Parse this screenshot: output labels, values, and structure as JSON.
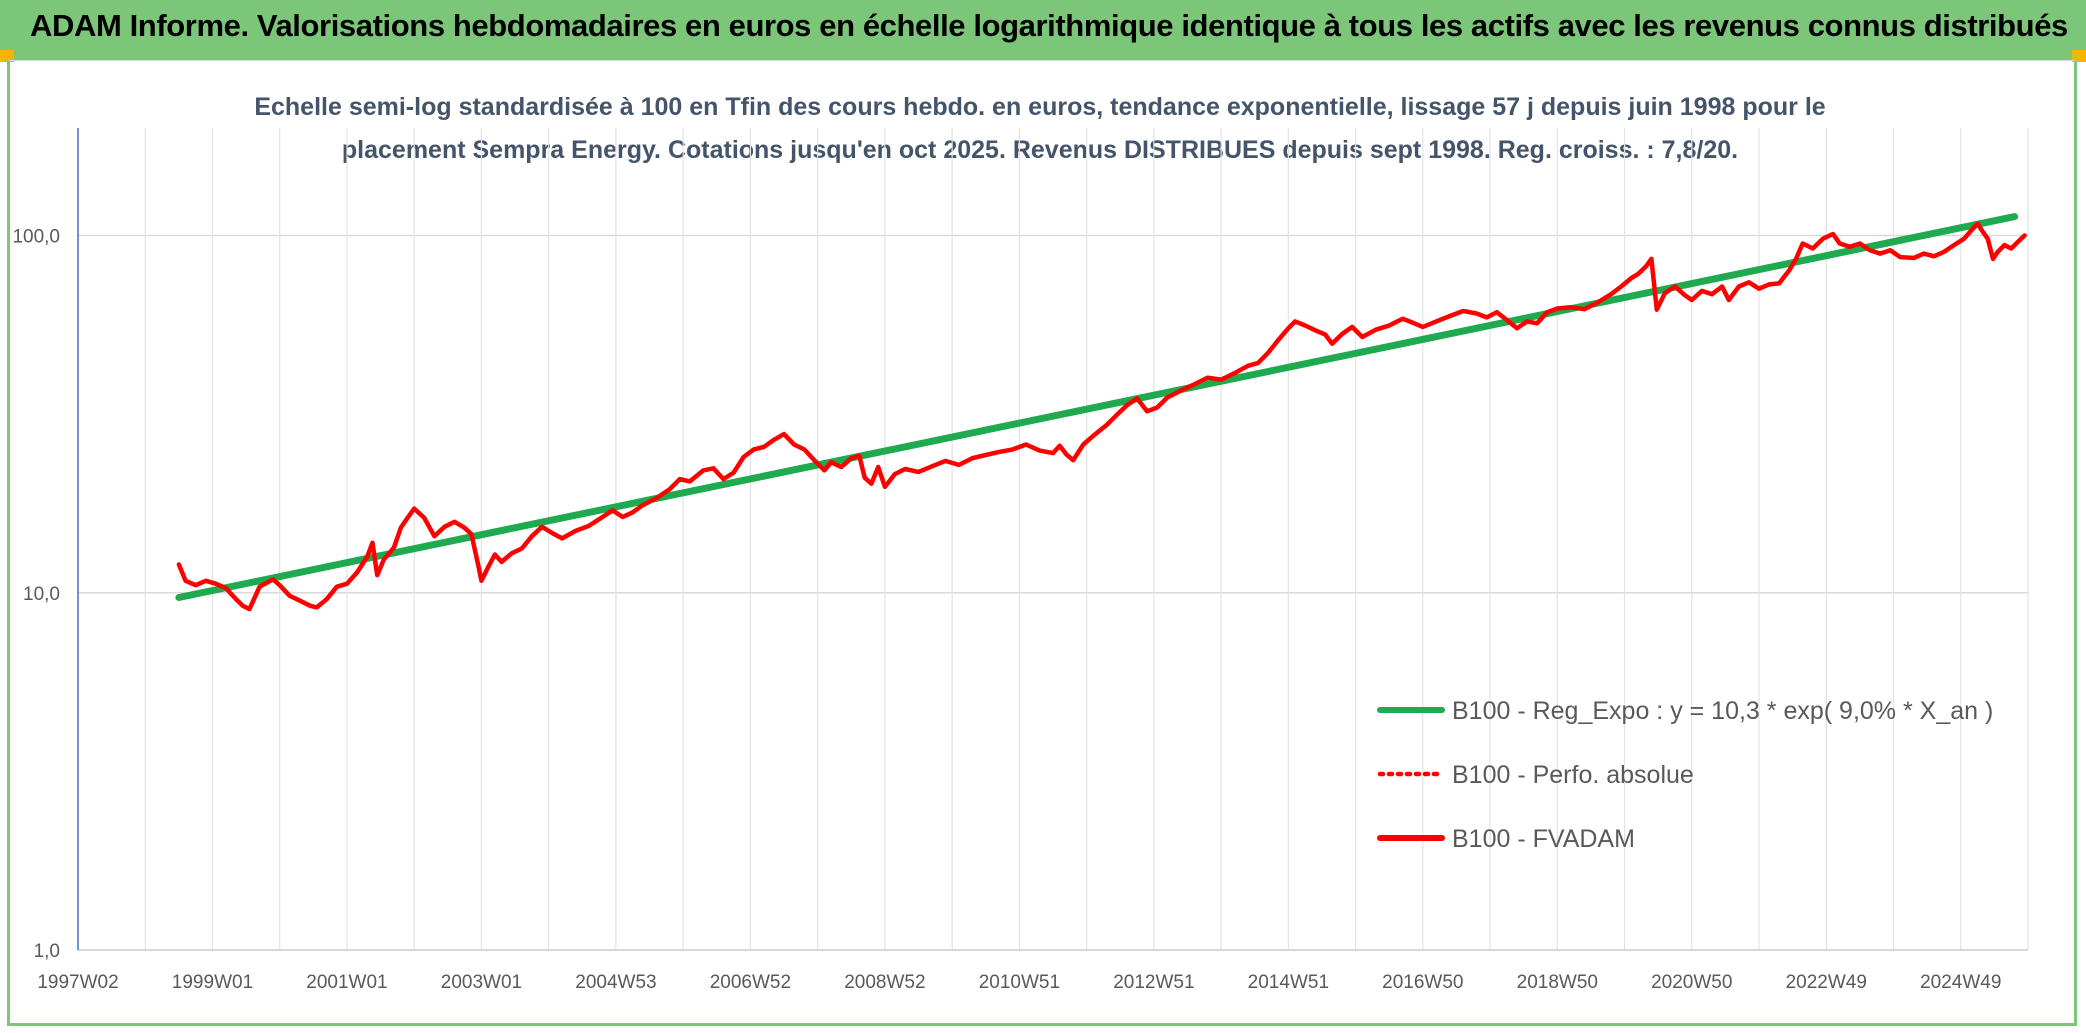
{
  "banner": {
    "title": "ADAM Informe. Valorisations hebdomadaires en euros en échelle logarithmique identique à tous les actifs avec les revenus connus distribués"
  },
  "chart_data": {
    "type": "line",
    "subtitle_lines": [
      "Echelle semi-log standardisée à 100 en Tfin des cours hebdo. en euros, tendance exponentielle, lissage 57 j depuis juin 1998 pour le",
      "placement Sempra Energy. Cotations jusqu'en oct 2025. Revenus DISTRIBUES depuis sept 1998. Reg. croiss. : 7,8/20."
    ],
    "y_scale": "log",
    "ylim": [
      1,
      200
    ],
    "y_ticks": [
      {
        "value": 1,
        "label": "1,0"
      },
      {
        "value": 10,
        "label": "10,0"
      },
      {
        "value": 100,
        "label": "100,0"
      }
    ],
    "xlim": [
      1997.0,
      2026.0
    ],
    "x_ticks": [
      {
        "value": 1997.0,
        "label": "1997W02"
      },
      {
        "value": 1999.0,
        "label": "1999W01"
      },
      {
        "value": 2001.0,
        "label": "2001W01"
      },
      {
        "value": 2003.0,
        "label": "2003W01"
      },
      {
        "value": 2005.0,
        "label": "2004W53"
      },
      {
        "value": 2007.0,
        "label": "2006W52"
      },
      {
        "value": 2009.0,
        "label": "2008W52"
      },
      {
        "value": 2011.0,
        "label": "2010W51"
      },
      {
        "value": 2013.0,
        "label": "2012W51"
      },
      {
        "value": 2015.0,
        "label": "2014W51"
      },
      {
        "value": 2017.0,
        "label": "2016W50"
      },
      {
        "value": 2019.0,
        "label": "2018W50"
      },
      {
        "value": 2021.0,
        "label": "2020W50"
      },
      {
        "value": 2023.0,
        "label": "2022W49"
      },
      {
        "value": 2025.0,
        "label": "2024W49"
      }
    ],
    "grid": true,
    "legend_position": "bottom-right",
    "series": [
      {
        "name": "B100 - Reg_Expo : y = 10,3 * exp( 9,0% *  X_an )",
        "color": "#1faa50",
        "style": "solid",
        "points": [
          [
            1998.5,
            9.7
          ],
          [
            2025.8,
            113
          ]
        ]
      },
      {
        "name": "B100 - Perfo. absolue",
        "color": "#ff0000",
        "style": "dotted",
        "points": []
      },
      {
        "name": "B100 - FVADAM",
        "color": "#ff0000",
        "style": "solid",
        "points": [
          [
            1998.5,
            12.0
          ],
          [
            1998.6,
            10.8
          ],
          [
            1998.75,
            10.5
          ],
          [
            1998.9,
            10.8
          ],
          [
            1999.05,
            10.6
          ],
          [
            1999.2,
            10.3
          ],
          [
            1999.35,
            9.6
          ],
          [
            1999.45,
            9.2
          ],
          [
            1999.55,
            9.0
          ],
          [
            1999.7,
            10.4
          ],
          [
            1999.9,
            10.9
          ],
          [
            2000.0,
            10.5
          ],
          [
            2000.15,
            9.8
          ],
          [
            2000.3,
            9.5
          ],
          [
            2000.45,
            9.2
          ],
          [
            2000.55,
            9.1
          ],
          [
            2000.7,
            9.6
          ],
          [
            2000.85,
            10.4
          ],
          [
            2001.0,
            10.6
          ],
          [
            2001.15,
            11.4
          ],
          [
            2001.3,
            12.6
          ],
          [
            2001.38,
            13.8
          ],
          [
            2001.45,
            11.2
          ],
          [
            2001.55,
            12.4
          ],
          [
            2001.7,
            13.4
          ],
          [
            2001.8,
            15.2
          ],
          [
            2001.9,
            16.2
          ],
          [
            2002.0,
            17.2
          ],
          [
            2002.15,
            16.2
          ],
          [
            2002.3,
            14.4
          ],
          [
            2002.45,
            15.3
          ],
          [
            2002.6,
            15.8
          ],
          [
            2002.75,
            15.2
          ],
          [
            2002.85,
            14.6
          ],
          [
            2002.95,
            12.0
          ],
          [
            2003.0,
            10.8
          ],
          [
            2003.1,
            11.8
          ],
          [
            2003.2,
            12.8
          ],
          [
            2003.3,
            12.2
          ],
          [
            2003.45,
            12.9
          ],
          [
            2003.6,
            13.3
          ],
          [
            2003.75,
            14.4
          ],
          [
            2003.9,
            15.3
          ],
          [
            2004.05,
            14.7
          ],
          [
            2004.2,
            14.2
          ],
          [
            2004.4,
            14.9
          ],
          [
            2004.6,
            15.4
          ],
          [
            2004.8,
            16.3
          ],
          [
            2004.95,
            17.0
          ],
          [
            2005.1,
            16.3
          ],
          [
            2005.25,
            16.8
          ],
          [
            2005.4,
            17.6
          ],
          [
            2005.6,
            18.4
          ],
          [
            2005.8,
            19.5
          ],
          [
            2005.95,
            20.8
          ],
          [
            2006.1,
            20.5
          ],
          [
            2006.3,
            22.0
          ],
          [
            2006.45,
            22.3
          ],
          [
            2006.6,
            20.8
          ],
          [
            2006.75,
            21.7
          ],
          [
            2006.9,
            24.0
          ],
          [
            2007.05,
            25.2
          ],
          [
            2007.2,
            25.6
          ],
          [
            2007.35,
            26.8
          ],
          [
            2007.5,
            27.8
          ],
          [
            2007.65,
            26.0
          ],
          [
            2007.8,
            25.2
          ],
          [
            2007.95,
            23.5
          ],
          [
            2008.1,
            22.0
          ],
          [
            2008.2,
            23.2
          ],
          [
            2008.35,
            22.5
          ],
          [
            2008.5,
            23.8
          ],
          [
            2008.62,
            24.2
          ],
          [
            2008.7,
            21.0
          ],
          [
            2008.8,
            20.2
          ],
          [
            2008.9,
            22.5
          ],
          [
            2009.0,
            19.8
          ],
          [
            2009.15,
            21.5
          ],
          [
            2009.3,
            22.2
          ],
          [
            2009.5,
            21.8
          ],
          [
            2009.7,
            22.6
          ],
          [
            2009.9,
            23.4
          ],
          [
            2010.1,
            22.8
          ],
          [
            2010.3,
            23.8
          ],
          [
            2010.5,
            24.3
          ],
          [
            2010.7,
            24.8
          ],
          [
            2010.9,
            25.2
          ],
          [
            2011.1,
            26.0
          ],
          [
            2011.3,
            25.0
          ],
          [
            2011.5,
            24.6
          ],
          [
            2011.6,
            25.8
          ],
          [
            2011.7,
            24.4
          ],
          [
            2011.8,
            23.5
          ],
          [
            2011.95,
            26.0
          ],
          [
            2012.1,
            27.5
          ],
          [
            2012.3,
            29.5
          ],
          [
            2012.45,
            31.5
          ],
          [
            2012.6,
            33.5
          ],
          [
            2012.75,
            35.0
          ],
          [
            2012.9,
            32.2
          ],
          [
            2013.05,
            33.0
          ],
          [
            2013.2,
            35.2
          ],
          [
            2013.4,
            36.8
          ],
          [
            2013.6,
            38.3
          ],
          [
            2013.8,
            40.0
          ],
          [
            2014.0,
            39.5
          ],
          [
            2014.2,
            41.2
          ],
          [
            2014.4,
            43.2
          ],
          [
            2014.55,
            44.0
          ],
          [
            2014.7,
            47.0
          ],
          [
            2014.85,
            51.0
          ],
          [
            2015.0,
            55.0
          ],
          [
            2015.1,
            57.5
          ],
          [
            2015.25,
            56.0
          ],
          [
            2015.4,
            54.3
          ],
          [
            2015.55,
            52.8
          ],
          [
            2015.65,
            49.8
          ],
          [
            2015.8,
            53.0
          ],
          [
            2015.95,
            55.5
          ],
          [
            2016.1,
            52.0
          ],
          [
            2016.3,
            54.5
          ],
          [
            2016.5,
            56.0
          ],
          [
            2016.7,
            58.5
          ],
          [
            2016.85,
            57.0
          ],
          [
            2017.0,
            55.5
          ],
          [
            2017.2,
            57.5
          ],
          [
            2017.4,
            59.5
          ],
          [
            2017.6,
            61.5
          ],
          [
            2017.8,
            60.5
          ],
          [
            2017.95,
            59.0
          ],
          [
            2018.1,
            61.0
          ],
          [
            2018.25,
            58.0
          ],
          [
            2018.4,
            55.0
          ],
          [
            2018.55,
            57.5
          ],
          [
            2018.7,
            56.8
          ],
          [
            2018.85,
            61.0
          ],
          [
            2019.0,
            62.5
          ],
          [
            2019.2,
            63.0
          ],
          [
            2019.4,
            62.2
          ],
          [
            2019.6,
            65.0
          ],
          [
            2019.8,
            68.5
          ],
          [
            2019.95,
            72.0
          ],
          [
            2020.1,
            76.0
          ],
          [
            2020.2,
            78.0
          ],
          [
            2020.32,
            82.0
          ],
          [
            2020.4,
            86.0
          ],
          [
            2020.48,
            62.0
          ],
          [
            2020.6,
            69.0
          ],
          [
            2020.75,
            72.0
          ],
          [
            2020.9,
            68.0
          ],
          [
            2021.0,
            66.0
          ],
          [
            2021.15,
            70.0
          ],
          [
            2021.3,
            68.5
          ],
          [
            2021.45,
            72.0
          ],
          [
            2021.55,
            66.0
          ],
          [
            2021.7,
            72.0
          ],
          [
            2021.85,
            74.0
          ],
          [
            2022.0,
            71.0
          ],
          [
            2022.15,
            73.0
          ],
          [
            2022.3,
            73.5
          ],
          [
            2022.45,
            80.0
          ],
          [
            2022.55,
            86.0
          ],
          [
            2022.65,
            95.0
          ],
          [
            2022.8,
            92.0
          ],
          [
            2022.95,
            98.0
          ],
          [
            2023.1,
            101.0
          ],
          [
            2023.2,
            95.0
          ],
          [
            2023.35,
            93.0
          ],
          [
            2023.5,
            95.0
          ],
          [
            2023.65,
            91.0
          ],
          [
            2023.8,
            89.0
          ],
          [
            2023.95,
            91.0
          ],
          [
            2024.1,
            87.0
          ],
          [
            2024.3,
            86.5
          ],
          [
            2024.45,
            89.0
          ],
          [
            2024.6,
            87.5
          ],
          [
            2024.75,
            90.0
          ],
          [
            2024.9,
            94.0
          ],
          [
            2025.05,
            98.0
          ],
          [
            2025.15,
            103.0
          ],
          [
            2025.25,
            108.0
          ],
          [
            2025.32,
            103.0
          ],
          [
            2025.4,
            98.0
          ],
          [
            2025.48,
            86.0
          ],
          [
            2025.55,
            90.0
          ],
          [
            2025.65,
            94.0
          ],
          [
            2025.75,
            92.0
          ],
          [
            2025.85,
            96.0
          ],
          [
            2025.95,
            100.0
          ]
        ]
      }
    ]
  }
}
